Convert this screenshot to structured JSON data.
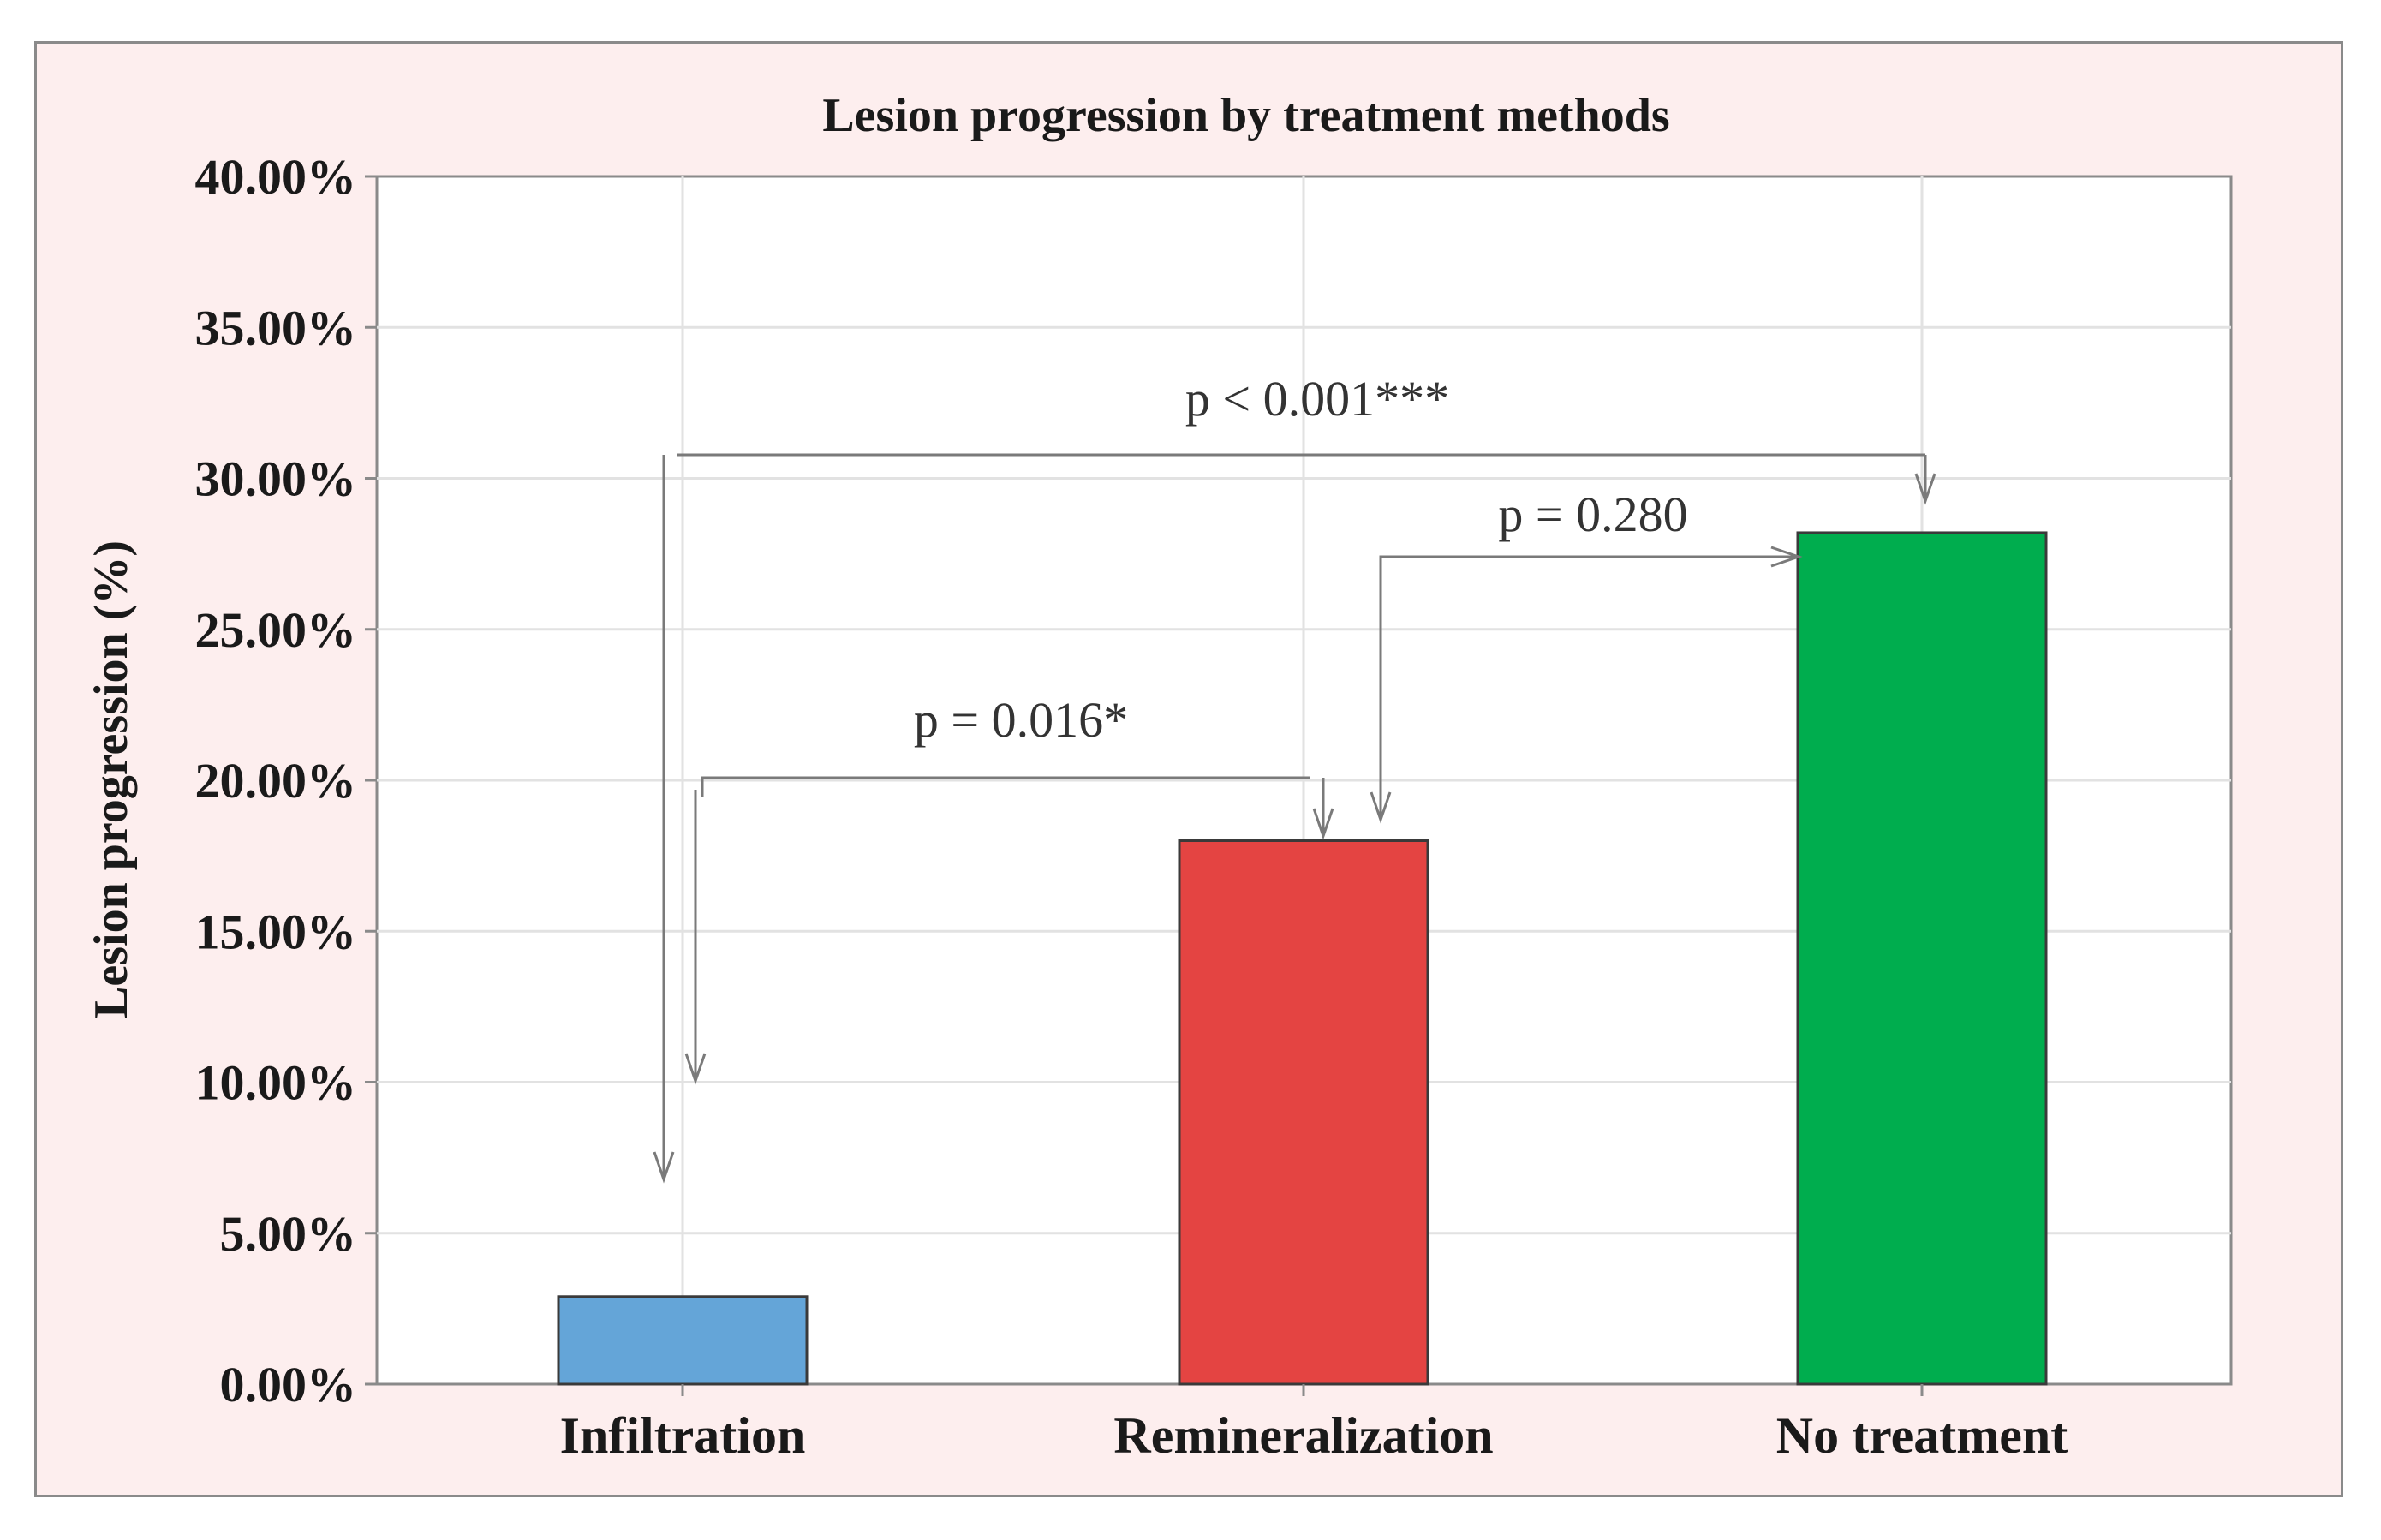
{
  "chart_data": {
    "type": "bar",
    "title": "Lesion progression by treatment methods",
    "xlabel": "",
    "ylabel": "Lesion progression (%)",
    "ylim": [
      0,
      40
    ],
    "yticks": [
      "0.00%",
      "5.00%",
      "10.00%",
      "15.00%",
      "20.00%",
      "25.00%",
      "30.00%",
      "35.00%",
      "40.00%"
    ],
    "categories": [
      "Infiltration",
      "Remineralization",
      "No treatment"
    ],
    "values": [
      2.9,
      18.0,
      28.2
    ],
    "colors": [
      "#64a5d8",
      "#e44442",
      "#00ad4e"
    ],
    "grid": true,
    "annotations": [
      {
        "label": "p < 0.001***",
        "from": "No treatment",
        "to": "Infiltration",
        "bracket_level": 30.8,
        "arrow_to_level": 6.8
      },
      {
        "label": "p = 0.280",
        "from": "Remineralization",
        "to": "No treatment",
        "bracket_level": 27.3,
        "arrow_to_level": 18.7
      },
      {
        "label": "p = 0.016*",
        "from": "Remineralization",
        "to": "Infiltration",
        "bracket_level": 20.1,
        "arrow_to_level": 10.0
      }
    ]
  }
}
